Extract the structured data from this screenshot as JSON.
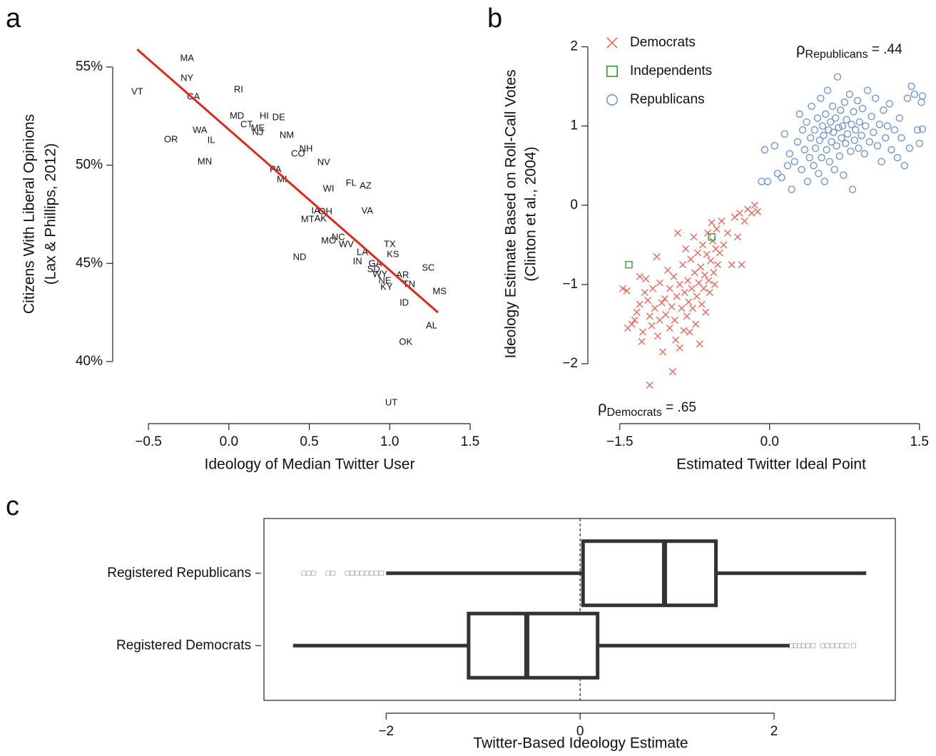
{
  "chart_data": [
    {
      "type": "text-scatter",
      "panel_label": "a",
      "x_label": "Ideology of Median Twitter User",
      "y_label": [
        "Citizens With Liberal Opinions",
        "(Lax & Phillips, 2012)"
      ],
      "labels": [
        "MA",
        "NY",
        "VT",
        "CA",
        "RI",
        "MD",
        "HI",
        "DE",
        "CT",
        "ME",
        "NJ",
        "WA",
        "OR",
        "IL",
        "NM",
        "NH",
        "CO",
        "MN",
        "NV",
        "PA",
        "MI",
        "FL",
        "AZ",
        "WI",
        "VA",
        "IA",
        "OH",
        "MT",
        "AK",
        "MO",
        "NC",
        "WV",
        "TX",
        "KS",
        "LA",
        "ND",
        "IN",
        "GA",
        "SC",
        "SD",
        "WY",
        "AR",
        "NE",
        "TN",
        "KY",
        "MS",
        "ID",
        "AL",
        "OK",
        "UT"
      ],
      "x": [
        -0.26,
        -0.26,
        -0.57,
        -0.22,
        0.06,
        0.05,
        0.22,
        0.31,
        0.11,
        0.18,
        0.18,
        -0.18,
        -0.36,
        -0.11,
        0.36,
        0.48,
        0.43,
        -0.15,
        0.59,
        0.29,
        0.33,
        0.76,
        0.85,
        0.62,
        0.86,
        0.54,
        0.6,
        0.49,
        0.57,
        0.62,
        0.68,
        0.73,
        1.0,
        1.02,
        0.83,
        0.44,
        0.8,
        0.91,
        1.24,
        0.9,
        0.94,
        1.08,
        0.97,
        1.12,
        0.98,
        1.31,
        1.09,
        1.26,
        1.1,
        1.01
      ],
      "y": [
        55.44,
        54.42,
        53.73,
        53.47,
        53.84,
        52.49,
        52.49,
        52.42,
        52.06,
        51.88,
        51.66,
        51.77,
        51.3,
        51.26,
        51.51,
        50.82,
        50.57,
        50.17,
        50.13,
        49.77,
        49.26,
        49.08,
        48.93,
        48.79,
        47.66,
        47.66,
        47.63,
        47.23,
        47.26,
        46.14,
        46.32,
        45.96,
        45.96,
        45.45,
        45.56,
        45.3,
        45.08,
        44.97,
        44.76,
        44.68,
        44.43,
        44.39,
        44.1,
        43.92,
        43.78,
        43.56,
        42.98,
        41.81,
        40.98,
        37.89
      ],
      "fit_line": {
        "x": [
          -0.57,
          1.3
        ],
        "y": [
          55.9,
          42.5
        ],
        "color": "#e3261c"
      },
      "xlim": [
        -0.7,
        1.5
      ],
      "ylim": [
        37,
        56.5
      ],
      "xticks": [
        {
          "value": -0.5,
          "label": "−0.5"
        },
        {
          "value": 0,
          "label": "0.0"
        },
        0.5,
        {
          "value": 1,
          "label": "1.0"
        },
        1.5
      ],
      "yticks": [
        {
          "value": 40,
          "label": "40%"
        },
        {
          "value": 45,
          "label": "45%"
        },
        {
          "value": 50,
          "label": "50%"
        },
        {
          "value": 55,
          "label": "55%"
        }
      ]
    },
    {
      "type": "scatter",
      "panel_label": "b",
      "x_label": "Estimated Twitter Ideal Point",
      "y_label": [
        "Ideology Estimate Based on Roll-Call Votes",
        "(Clinton et al., 2004)"
      ],
      "legend": "top-left",
      "series": [
        {
          "name": "Democrats",
          "color": "#e8685a",
          "marker": "x",
          "x": [
            -1.47,
            -1.43,
            -1.42,
            -1.38,
            -1.35,
            -1.33,
            -1.3,
            -1.3,
            -1.28,
            -1.27,
            -1.25,
            -1.24,
            -1.22,
            -1.2,
            -1.2,
            -1.18,
            -1.17,
            -1.15,
            -1.13,
            -1.12,
            -1.1,
            -1.1,
            -1.08,
            -1.07,
            -1.05,
            -1.04,
            -1.02,
            -1.0,
            -1.0,
            -0.98,
            -0.97,
            -0.96,
            -0.95,
            -0.94,
            -0.93,
            -0.92,
            -0.9,
            -0.9,
            -0.88,
            -0.87,
            -0.86,
            -0.85,
            -0.84,
            -0.83,
            -0.82,
            -0.81,
            -0.8,
            -0.79,
            -0.78,
            -0.77,
            -0.76,
            -0.75,
            -0.74,
            -0.73,
            -0.72,
            -0.71,
            -0.7,
            -0.69,
            -0.68,
            -0.67,
            -0.66,
            -0.65,
            -0.64,
            -0.63,
            -0.62,
            -0.61,
            -0.6,
            -0.59,
            -0.58,
            -0.57,
            -0.56,
            -0.55,
            -0.54,
            -0.53,
            -0.52,
            -0.5,
            -0.48,
            -0.46,
            -0.42,
            -0.38,
            -0.35,
            -0.32,
            -0.3,
            -0.28,
            -0.25,
            -0.22,
            -0.18,
            -0.15,
            -0.12
          ],
          "y": [
            -1.05,
            -1.08,
            -1.55,
            -1.5,
            -1.45,
            -1.35,
            -0.9,
            -1.25,
            -1.72,
            -1.6,
            -1.1,
            -0.93,
            -1.2,
            -1.4,
            -2.27,
            -1.52,
            -1.05,
            -1.3,
            -0.65,
            -1.65,
            -1.45,
            -0.98,
            -1.23,
            -1.85,
            -1.18,
            -1.38,
            -0.82,
            -1.55,
            -1.05,
            -1.28,
            -2.1,
            -0.9,
            -1.45,
            -1.7,
            -1.15,
            -0.35,
            -1.0,
            -1.8,
            -1.3,
            -0.75,
            -1.58,
            -1.1,
            -0.55,
            -1.4,
            -0.95,
            -1.22,
            -1.6,
            -0.68,
            -1.05,
            -1.3,
            -0.4,
            -0.85,
            -1.5,
            -1.15,
            -0.6,
            -0.98,
            -1.75,
            -0.78,
            -1.25,
            -0.5,
            -1.05,
            -0.88,
            -1.35,
            -0.62,
            -0.35,
            -0.95,
            -1.1,
            -0.7,
            -0.22,
            -0.45,
            -0.85,
            -1.0,
            -0.55,
            -0.3,
            -0.75,
            -0.6,
            -0.2,
            -0.5,
            -0.35,
            -0.75,
            -0.15,
            -0.4,
            -0.1,
            -0.75,
            -0.2,
            -0.05,
            -0.1,
            0,
            -0.08
          ]
        },
        {
          "name": "Independents",
          "color": "#2ca02c",
          "marker": "square",
          "x": [
            -1.41,
            -0.58
          ],
          "y": [
            -0.75,
            -0.4
          ]
        },
        {
          "name": "Republicans",
          "color": "#7097d4",
          "marker": "circle",
          "x": [
            -0.08,
            -0.05,
            -0.02,
            0.05,
            0.08,
            0.12,
            0.15,
            0.18,
            0.2,
            0.22,
            0.25,
            0.28,
            0.3,
            0.32,
            0.33,
            0.35,
            0.37,
            0.38,
            0.4,
            0.41,
            0.42,
            0.44,
            0.45,
            0.46,
            0.48,
            0.49,
            0.5,
            0.51,
            0.52,
            0.53,
            0.54,
            0.55,
            0.56,
            0.57,
            0.58,
            0.59,
            0.6,
            0.61,
            0.62,
            0.63,
            0.64,
            0.65,
            0.66,
            0.67,
            0.68,
            0.69,
            0.7,
            0.71,
            0.72,
            0.73,
            0.74,
            0.75,
            0.76,
            0.77,
            0.78,
            0.8,
            0.81,
            0.82,
            0.83,
            0.84,
            0.85,
            0.86,
            0.88,
            0.89,
            0.9,
            0.92,
            0.93,
            0.95,
            0.96,
            0.98,
            1.0,
            1.02,
            1.04,
            1.06,
            1.08,
            1.1,
            1.12,
            1.14,
            1.16,
            1.18,
            1.2,
            1.22,
            1.25,
            1.28,
            1.3,
            1.32,
            1.35,
            1.38,
            1.4,
            1.42,
            1.45,
            1.48,
            1.52,
            1.5,
            1.53,
            1.53
          ],
          "y": [
            0.3,
            0.7,
            0.3,
            0.75,
            0.4,
            0.35,
            0.9,
            0.5,
            0.65,
            0.2,
            0.55,
            0.8,
            1.15,
            0.45,
            0.95,
            0.7,
            1.05,
            0.3,
            0.6,
            0.85,
            1.25,
            0.5,
            0.95,
            0.72,
            1.1,
            0.4,
            0.82,
            1.35,
            0.6,
            1.0,
            0.88,
            0.3,
            1.15,
            0.7,
            1.45,
            0.95,
            0.55,
            1.05,
            0.8,
            1.25,
            0.92,
            0.45,
            1.1,
            0.75,
            1.62,
            0.98,
            0.62,
            1.2,
            0.85,
            1.0,
            0.38,
            1.3,
            0.78,
            1.08,
            0.9,
            1.4,
            0.68,
            1.02,
            0.2,
            1.18,
            0.82,
            0.95,
            1.32,
            0.72,
            1.05,
            0.88,
            1.22,
            0.65,
            1.0,
            1.45,
            0.8,
            1.12,
            0.92,
            1.35,
            0.75,
            1.02,
            0.55,
            1.2,
            0.85,
            1.0,
            1.28,
            0.7,
            0.95,
            0.6,
            1.1,
            0.85,
            0.5,
            1.35,
            0.72,
            1.5,
            1.4,
            0.95,
            1.3,
            0.78,
            1.38,
            0.96
          ]
        }
      ],
      "annotations": [
        {
          "symbol": "ρ",
          "subscript": "Republicans",
          "text": " = .44"
        },
        {
          "symbol": "ρ",
          "subscript": "Democrats",
          "text": " = .65"
        }
      ],
      "xlim": [
        -1.72,
        1.58
      ],
      "ylim": [
        -2.36,
        2.14
      ],
      "xticks": [
        {
          "value": -1.5,
          "label": "−1.5"
        },
        {
          "value": 0,
          "label": "0.0"
        },
        1.5
      ],
      "yticks": [
        {
          "value": -2,
          "label": "−2"
        },
        {
          "value": -1,
          "label": "−1"
        },
        0,
        1,
        2
      ]
    },
    {
      "type": "boxplot",
      "panel_label": "c",
      "x_label": "Twitter-Based Ideology Estimate",
      "categories": [
        "Registered Republicans",
        "Registered Democrats"
      ],
      "boxes": [
        {
          "whislo": -2.0,
          "q1": 0.03,
          "median": 0.87,
          "q3": 1.4,
          "whishi": 2.95,
          "fliers": [
            -2.85,
            -2.8,
            -2.75,
            -2.6,
            -2.55,
            -2.4,
            -2.35,
            -2.3,
            -2.25,
            -2.2,
            -2.15,
            -2.1,
            -2.05
          ]
        },
        {
          "whislo": -2.96,
          "q1": -1.15,
          "median": -0.55,
          "q3": 0.18,
          "whishi": 2.16,
          "fliers": [
            2.18,
            2.22,
            2.26,
            2.3,
            2.35,
            2.4,
            2.5,
            2.55,
            2.6,
            2.65,
            2.7,
            2.75,
            2.82
          ]
        }
      ],
      "color": "#333333",
      "vline": 0,
      "xlim": [
        -3.26,
        3.25
      ],
      "xticks": [
        {
          "value": -2,
          "label": "−2"
        },
        0,
        2
      ]
    }
  ]
}
